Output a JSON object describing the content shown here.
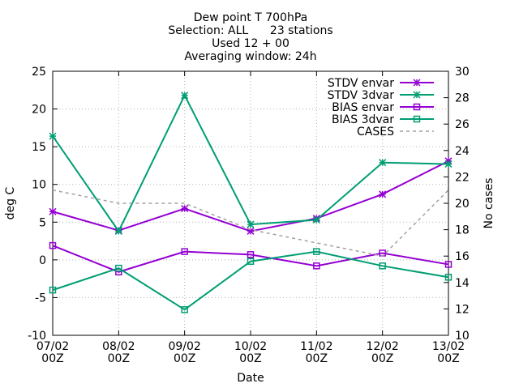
{
  "chart_data": {
    "type": "line",
    "title_lines": [
      "Dew point T 700hPa",
      "Selection: ALL      23 stations",
      "Used 12 + 00",
      "Averaging window: 24h"
    ],
    "xlabel": "Date",
    "ylabel": "deg C",
    "y2label": "No cases",
    "categories": [
      "07/02 00Z",
      "08/02 00Z",
      "09/02 00Z",
      "10/02 00Z",
      "11/02 00Z",
      "12/02 00Z",
      "13/02 00Z"
    ],
    "category_lines": [
      [
        "07/02",
        "00Z"
      ],
      [
        "08/02",
        "00Z"
      ],
      [
        "09/02",
        "00Z"
      ],
      [
        "10/02",
        "00Z"
      ],
      [
        "11/02",
        "00Z"
      ],
      [
        "12/02",
        "00Z"
      ],
      [
        "13/02",
        "00Z"
      ]
    ],
    "ylim": [
      -10,
      25
    ],
    "yticks": [
      "-10",
      "-5",
      "0",
      "5",
      "10",
      "15",
      "20",
      "25"
    ],
    "y2lim": [
      10,
      30
    ],
    "y2ticks": [
      "10",
      "12",
      "14",
      "16",
      "18",
      "20",
      "22",
      "24",
      "26",
      "28",
      "30"
    ],
    "legend_position": "top-right",
    "series": [
      {
        "name": "STDV envar",
        "axis": "y",
        "color": "#9400d3",
        "marker": "star",
        "dashed": false,
        "values": [
          6.4,
          3.9,
          6.8,
          3.8,
          5.5,
          8.7,
          13.1
        ]
      },
      {
        "name": "STDV 3dvar",
        "axis": "y",
        "color": "#009e73",
        "marker": "star",
        "dashed": false,
        "values": [
          16.4,
          3.8,
          21.8,
          4.7,
          5.3,
          12.9,
          12.7
        ]
      },
      {
        "name": "BIAS envar",
        "axis": "y",
        "color": "#9400d3",
        "marker": "square",
        "dashed": false,
        "values": [
          1.9,
          -1.6,
          1.1,
          0.7,
          -0.8,
          0.9,
          -0.6
        ]
      },
      {
        "name": "BIAS 3dvar",
        "axis": "y",
        "color": "#009e73",
        "marker": "square",
        "dashed": false,
        "values": [
          -4.0,
          -1.1,
          -6.6,
          -0.2,
          1.1,
          -0.8,
          -2.3
        ]
      },
      {
        "name": "CASES",
        "axis": "y2",
        "color": "#a0a0a0",
        "marker": "none",
        "dashed": true,
        "values": [
          21,
          20,
          20,
          18,
          17,
          16,
          21
        ]
      }
    ]
  }
}
